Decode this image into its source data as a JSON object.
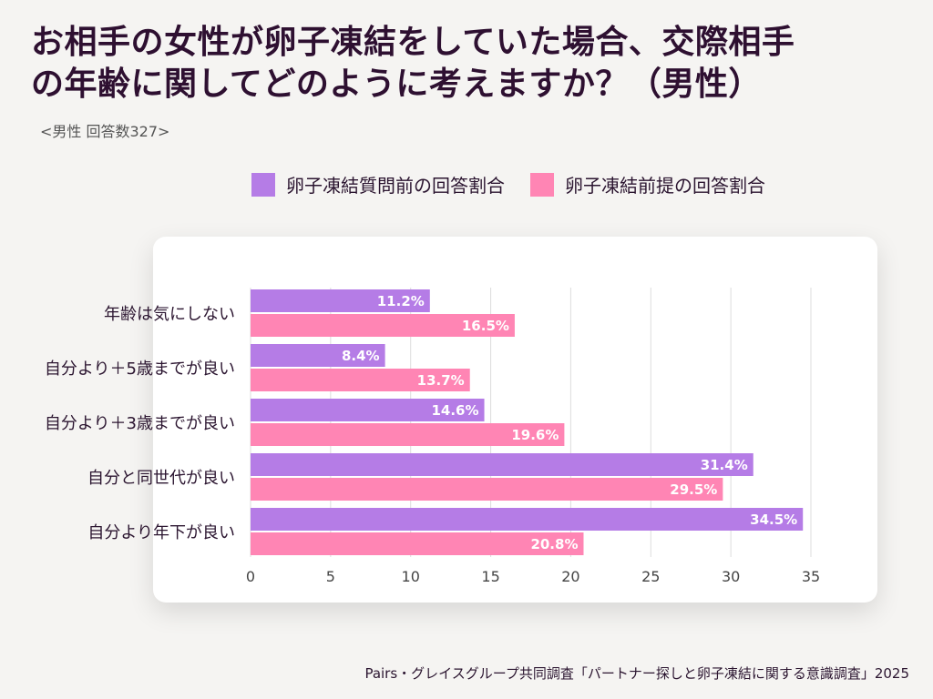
{
  "title_line1": "お相手の女性が卵子凍結をしていた場合、交際相手",
  "title_line2": "の年齢に関してどのように考えますか？（男性）",
  "subtitle": "<男性 回答数327>",
  "footer": "Pairs・グレイスグループ共同調査「パートナー探しと卵子凍結に関する意識調査」2025",
  "colors": {
    "series1": "#b57ce6",
    "series2": "#ff85b4",
    "background": "#f5f4f2",
    "card": "#ffffff",
    "grid": "#dddddd",
    "title": "#2e1031"
  },
  "chart_data": {
    "type": "bar",
    "orientation": "horizontal",
    "categories": [
      "年齢は気にしない",
      "自分より＋5歳までが良い",
      "自分より＋3歳までが良い",
      "自分と同世代が良い",
      "自分より年下が良い"
    ],
    "series": [
      {
        "name": "卵子凍結質問前の回答割合",
        "values": [
          11.2,
          8.4,
          14.6,
          31.4,
          34.5
        ],
        "labels": [
          "11.2%",
          "8.4%",
          "14.6%",
          "31.4%",
          "34.5%"
        ]
      },
      {
        "name": "卵子凍結前提の回答割合",
        "values": [
          16.5,
          13.7,
          19.6,
          29.5,
          20.8
        ],
        "labels": [
          "16.5%",
          "13.7%",
          "19.6%",
          "29.5%",
          "20.8%"
        ]
      }
    ],
    "xlim": [
      0,
      35
    ],
    "xticks": [
      0,
      5,
      10,
      15,
      20,
      25,
      30,
      35
    ],
    "grid": true,
    "legend_position": "top"
  }
}
